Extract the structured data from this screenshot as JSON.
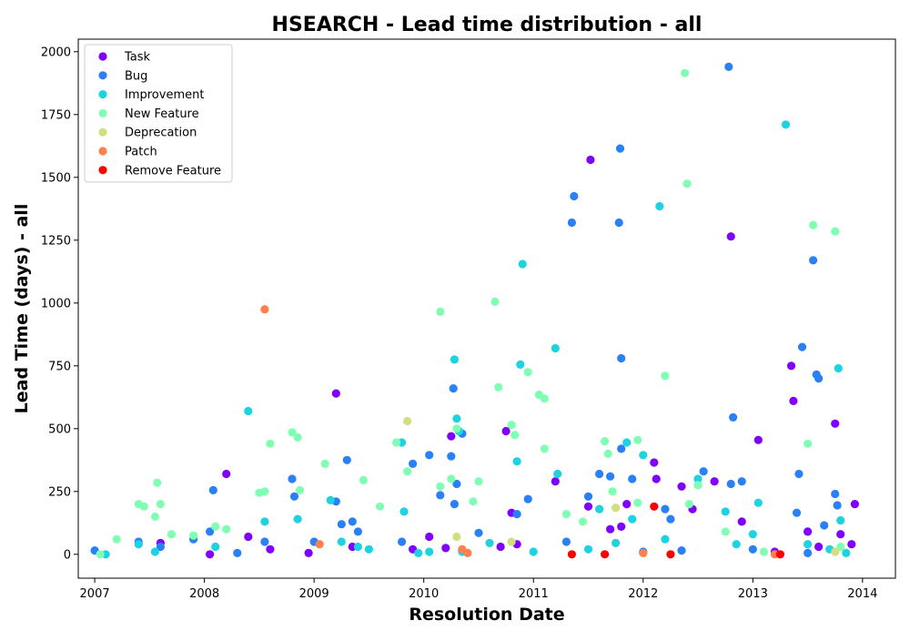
{
  "chart_data": {
    "type": "scatter",
    "title": "HSEARCH - Lead time distribution - all",
    "xlabel": "Resolution Date",
    "ylabel": "Lead Time (days) - all",
    "xlim": [
      2006.85,
      2014.3
    ],
    "ylim": [
      -95,
      2050
    ],
    "xticks": [
      2007,
      2008,
      2009,
      2010,
      2011,
      2012,
      2013,
      2014
    ],
    "yticks": [
      0,
      250,
      500,
      750,
      1000,
      1250,
      1500,
      1750,
      2000
    ],
    "grid": false,
    "legend_position": "top-left",
    "series": [
      {
        "name": "Task",
        "color": "#8000ff",
        "points": [
          [
            2007.6,
            45
          ],
          [
            2008.05,
            0
          ],
          [
            2008.2,
            320
          ],
          [
            2008.4,
            70
          ],
          [
            2008.6,
            20
          ],
          [
            2008.95,
            5
          ],
          [
            2009.2,
            640
          ],
          [
            2009.35,
            30
          ],
          [
            2009.9,
            20
          ],
          [
            2010.05,
            70
          ],
          [
            2010.2,
            25
          ],
          [
            2010.25,
            470
          ],
          [
            2010.35,
            15
          ],
          [
            2010.7,
            30
          ],
          [
            2010.75,
            490
          ],
          [
            2010.8,
            165
          ],
          [
            2010.85,
            40
          ],
          [
            2011.2,
            290
          ],
          [
            2011.5,
            190
          ],
          [
            2011.52,
            1570
          ],
          [
            2011.7,
            100
          ],
          [
            2011.8,
            110
          ],
          [
            2011.85,
            200
          ],
          [
            2012.1,
            365
          ],
          [
            2012.12,
            300
          ],
          [
            2012.35,
            270
          ],
          [
            2012.45,
            180
          ],
          [
            2012.65,
            290
          ],
          [
            2012.8,
            1265
          ],
          [
            2012.9,
            130
          ],
          [
            2013.05,
            455
          ],
          [
            2013.2,
            10
          ],
          [
            2013.35,
            750
          ],
          [
            2013.37,
            610
          ],
          [
            2013.5,
            90
          ],
          [
            2013.6,
            30
          ],
          [
            2013.75,
            520
          ],
          [
            2013.8,
            80
          ],
          [
            2013.9,
            40
          ],
          [
            2013.93,
            200
          ]
        ]
      },
      {
        "name": "Bug",
        "color": "#2a80f7",
        "points": [
          [
            2007.0,
            15
          ],
          [
            2007.4,
            50
          ],
          [
            2007.6,
            30
          ],
          [
            2007.9,
            60
          ],
          [
            2008.05,
            90
          ],
          [
            2008.08,
            255
          ],
          [
            2008.3,
            5
          ],
          [
            2008.55,
            50
          ],
          [
            2008.8,
            300
          ],
          [
            2008.82,
            230
          ],
          [
            2009.0,
            50
          ],
          [
            2009.2,
            210
          ],
          [
            2009.25,
            120
          ],
          [
            2009.3,
            375
          ],
          [
            2009.35,
            130
          ],
          [
            2009.4,
            90
          ],
          [
            2009.8,
            50
          ],
          [
            2009.9,
            360
          ],
          [
            2010.05,
            395
          ],
          [
            2010.15,
            235
          ],
          [
            2010.25,
            390
          ],
          [
            2010.27,
            660
          ],
          [
            2010.28,
            200
          ],
          [
            2010.3,
            280
          ],
          [
            2010.35,
            480
          ],
          [
            2010.5,
            85
          ],
          [
            2010.85,
            160
          ],
          [
            2010.95,
            220
          ],
          [
            2011.3,
            50
          ],
          [
            2011.35,
            1320
          ],
          [
            2011.37,
            1425
          ],
          [
            2011.5,
            230
          ],
          [
            2011.6,
            320
          ],
          [
            2011.7,
            310
          ],
          [
            2011.78,
            1320
          ],
          [
            2011.79,
            1615
          ],
          [
            2011.8,
            780
          ],
          [
            2011.8,
            420
          ],
          [
            2011.9,
            300
          ],
          [
            2012.0,
            10
          ],
          [
            2012.2,
            180
          ],
          [
            2012.25,
            140
          ],
          [
            2012.35,
            15
          ],
          [
            2012.55,
            330
          ],
          [
            2012.8,
            280
          ],
          [
            2012.78,
            1940
          ],
          [
            2012.82,
            545
          ],
          [
            2012.9,
            290
          ],
          [
            2013.0,
            20
          ],
          [
            2013.4,
            165
          ],
          [
            2013.42,
            320
          ],
          [
            2013.45,
            825
          ],
          [
            2013.5,
            5
          ],
          [
            2013.55,
            1170
          ],
          [
            2013.6,
            700
          ],
          [
            2013.58,
            715
          ],
          [
            2013.65,
            115
          ],
          [
            2013.75,
            240
          ],
          [
            2013.77,
            195
          ]
        ]
      },
      {
        "name": "Improvement",
        "color": "#1ed3e0",
        "points": [
          [
            2007.1,
            0
          ],
          [
            2007.4,
            40
          ],
          [
            2007.55,
            10
          ],
          [
            2008.1,
            30
          ],
          [
            2008.4,
            570
          ],
          [
            2008.55,
            130
          ],
          [
            2008.85,
            140
          ],
          [
            2009.15,
            215
          ],
          [
            2009.25,
            50
          ],
          [
            2009.4,
            30
          ],
          [
            2009.5,
            20
          ],
          [
            2009.8,
            445
          ],
          [
            2009.82,
            170
          ],
          [
            2009.95,
            5
          ],
          [
            2010.05,
            10
          ],
          [
            2010.28,
            775
          ],
          [
            2010.3,
            540
          ],
          [
            2010.32,
            490
          ],
          [
            2010.35,
            10
          ],
          [
            2010.6,
            45
          ],
          [
            2010.85,
            370
          ],
          [
            2010.88,
            755
          ],
          [
            2010.9,
            1155
          ],
          [
            2011.0,
            10
          ],
          [
            2011.2,
            820
          ],
          [
            2011.22,
            320
          ],
          [
            2011.5,
            20
          ],
          [
            2011.6,
            180
          ],
          [
            2011.75,
            45
          ],
          [
            2011.85,
            445
          ],
          [
            2011.9,
            140
          ],
          [
            2012.0,
            395
          ],
          [
            2012.15,
            1385
          ],
          [
            2012.2,
            60
          ],
          [
            2012.5,
            300
          ],
          [
            2012.75,
            170
          ],
          [
            2012.85,
            40
          ],
          [
            2013.0,
            80
          ],
          [
            2013.05,
            205
          ],
          [
            2013.3,
            1710
          ],
          [
            2013.5,
            40
          ],
          [
            2013.7,
            20
          ],
          [
            2013.78,
            740
          ],
          [
            2013.8,
            135
          ],
          [
            2013.85,
            5
          ]
        ]
      },
      {
        "name": "New Feature",
        "color": "#80ffb4",
        "points": [
          [
            2007.05,
            0
          ],
          [
            2007.2,
            60
          ],
          [
            2007.4,
            200
          ],
          [
            2007.45,
            190
          ],
          [
            2007.55,
            150
          ],
          [
            2007.57,
            285
          ],
          [
            2007.6,
            200
          ],
          [
            2007.7,
            80
          ],
          [
            2007.9,
            75
          ],
          [
            2008.1,
            110
          ],
          [
            2008.2,
            100
          ],
          [
            2008.5,
            245
          ],
          [
            2008.55,
            250
          ],
          [
            2008.6,
            440
          ],
          [
            2008.8,
            485
          ],
          [
            2008.85,
            465
          ],
          [
            2008.87,
            255
          ],
          [
            2009.1,
            360
          ],
          [
            2009.45,
            295
          ],
          [
            2009.6,
            190
          ],
          [
            2009.75,
            445
          ],
          [
            2009.85,
            330
          ],
          [
            2010.15,
            965
          ],
          [
            2010.15,
            270
          ],
          [
            2010.25,
            300
          ],
          [
            2010.3,
            500
          ],
          [
            2010.45,
            210
          ],
          [
            2010.5,
            290
          ],
          [
            2010.65,
            1005
          ],
          [
            2010.68,
            665
          ],
          [
            2010.8,
            515
          ],
          [
            2010.83,
            475
          ],
          [
            2010.95,
            725
          ],
          [
            2011.05,
            635
          ],
          [
            2011.1,
            620
          ],
          [
            2011.1,
            420
          ],
          [
            2011.3,
            160
          ],
          [
            2011.45,
            130
          ],
          [
            2011.65,
            450
          ],
          [
            2011.68,
            400
          ],
          [
            2011.72,
            250
          ],
          [
            2011.95,
            455
          ],
          [
            2011.95,
            205
          ],
          [
            2012.2,
            710
          ],
          [
            2012.38,
            1915
          ],
          [
            2012.4,
            1475
          ],
          [
            2012.42,
            200
          ],
          [
            2012.5,
            275
          ],
          [
            2012.75,
            90
          ],
          [
            2013.1,
            10
          ],
          [
            2013.5,
            440
          ],
          [
            2013.55,
            1310
          ],
          [
            2013.75,
            1285
          ],
          [
            2013.8,
            30
          ]
        ]
      },
      {
        "name": "Deprecation",
        "color": "#d4dd80",
        "points": [
          [
            2009.85,
            530
          ],
          [
            2010.3,
            70
          ],
          [
            2010.8,
            50
          ],
          [
            2011.75,
            185
          ],
          [
            2013.75,
            10
          ]
        ]
      },
      {
        "name": "Patch",
        "color": "#ff7f4e",
        "points": [
          [
            2008.55,
            975
          ],
          [
            2009.05,
            40
          ],
          [
            2010.35,
            20
          ],
          [
            2010.4,
            5
          ],
          [
            2012.0,
            5
          ],
          [
            2013.2,
            0
          ]
        ]
      },
      {
        "name": "Remove Feature",
        "color": "#ff0000",
        "points": [
          [
            2011.35,
            0
          ],
          [
            2011.65,
            0
          ],
          [
            2012.1,
            190
          ],
          [
            2012.25,
            0
          ],
          [
            2013.25,
            0
          ]
        ]
      }
    ]
  }
}
